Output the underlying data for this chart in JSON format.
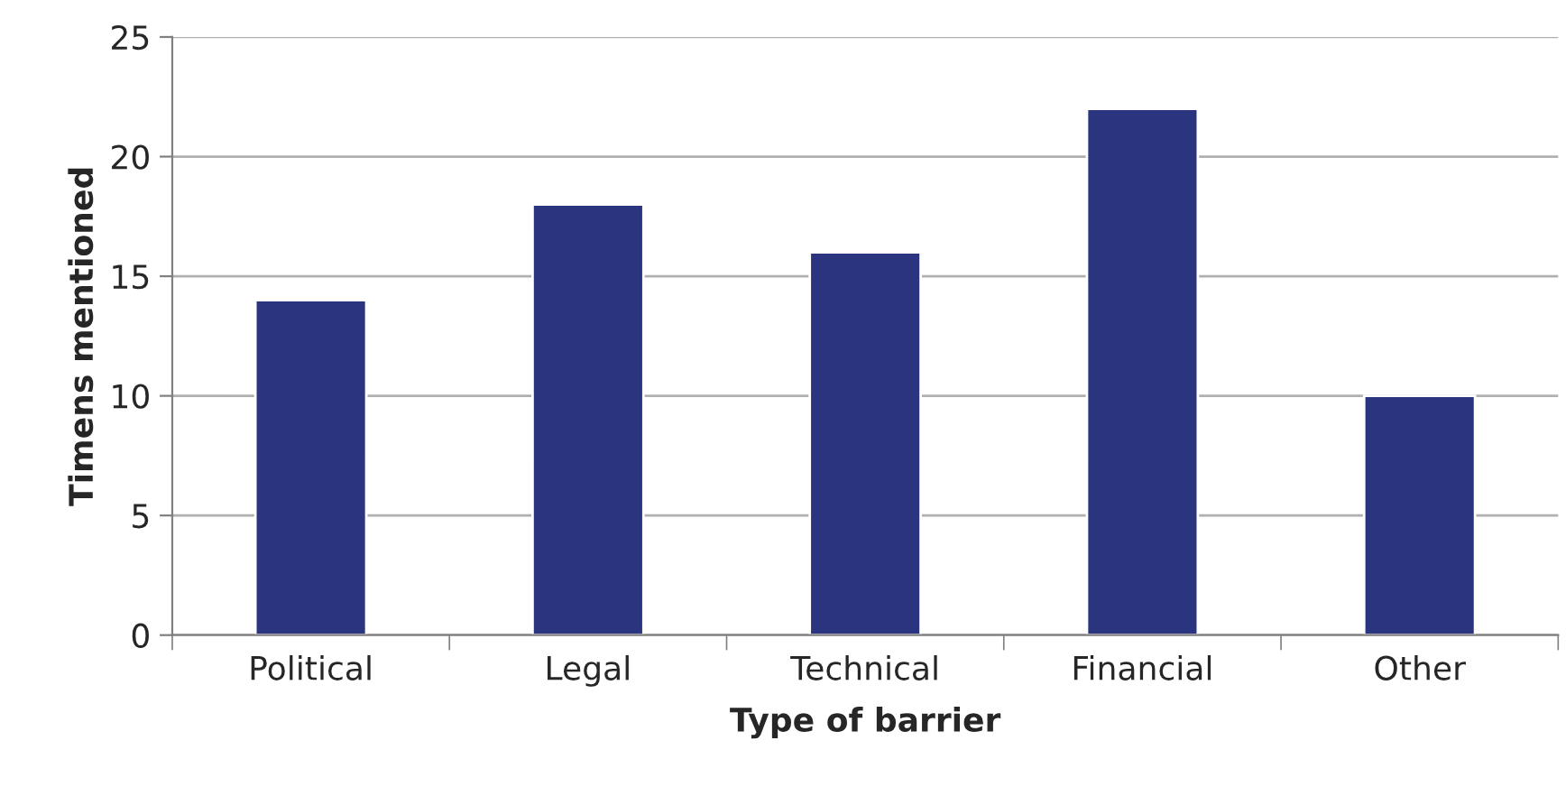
{
  "chart_data": {
    "type": "bar",
    "xlabel": "Type of barrier",
    "ylabel": "Timens mentioned",
    "categories": [
      "Political",
      "Legal",
      "Technical",
      "Financial",
      "Other"
    ],
    "values": [
      14,
      18,
      16,
      22,
      10
    ],
    "color": "#2b347e",
    "ylim": [
      0,
      25
    ],
    "yticks": [
      0,
      5,
      10,
      15,
      20,
      25
    ],
    "grid": "y",
    "legend": false
  }
}
